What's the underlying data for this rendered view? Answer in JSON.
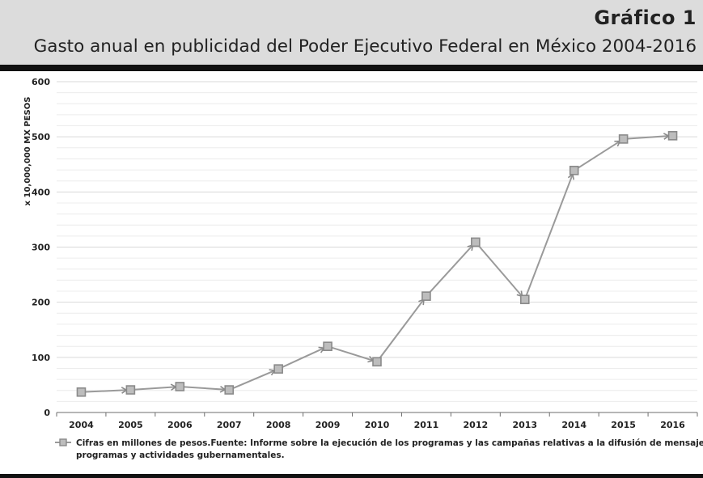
{
  "header": {
    "label": "Gráfico 1",
    "title": "Gasto anual en publicidad del Poder Ejecutivo Federal en México 2004-2016"
  },
  "colors": {
    "header_bg": "#dcdcdc",
    "rule": "#111111",
    "series_line": "#9a9a9a",
    "marker_fill": "#bdbdbd",
    "marker_stroke": "#8a8a8a",
    "grid": "#d9d9d9"
  },
  "chart_data": {
    "type": "line",
    "title": "",
    "xlabel": "",
    "ylabel": "x 10,000,000 MX PESOS",
    "ylim": [
      0,
      600
    ],
    "yticks": [
      0,
      100,
      200,
      300,
      400,
      500,
      600
    ],
    "minor_grid_step": 20,
    "grid": true,
    "legend": "bottom",
    "categories": [
      "2004",
      "2005",
      "2006",
      "2007",
      "2008",
      "2009",
      "2010",
      "2011",
      "2012",
      "2013",
      "2014",
      "2015",
      "2016"
    ],
    "series": [
      {
        "name": "Cifras en millones de pesos.Fuente: Informe sobre la ejecución de los programas y las campañas relativas a la difusión de mensajes sobre programas y actividades gubernamentales.",
        "legend_lines": [
          "Cifras en millones de pesos.Fuente: Informe sobre la ejecución de los programas y las campañas relativas a la difusión de mensajes sobre",
          "programas y actividades gubernamentales."
        ],
        "values": [
          37,
          41,
          47,
          41,
          79,
          120,
          92,
          211,
          309,
          205,
          439,
          496,
          502
        ]
      }
    ]
  }
}
